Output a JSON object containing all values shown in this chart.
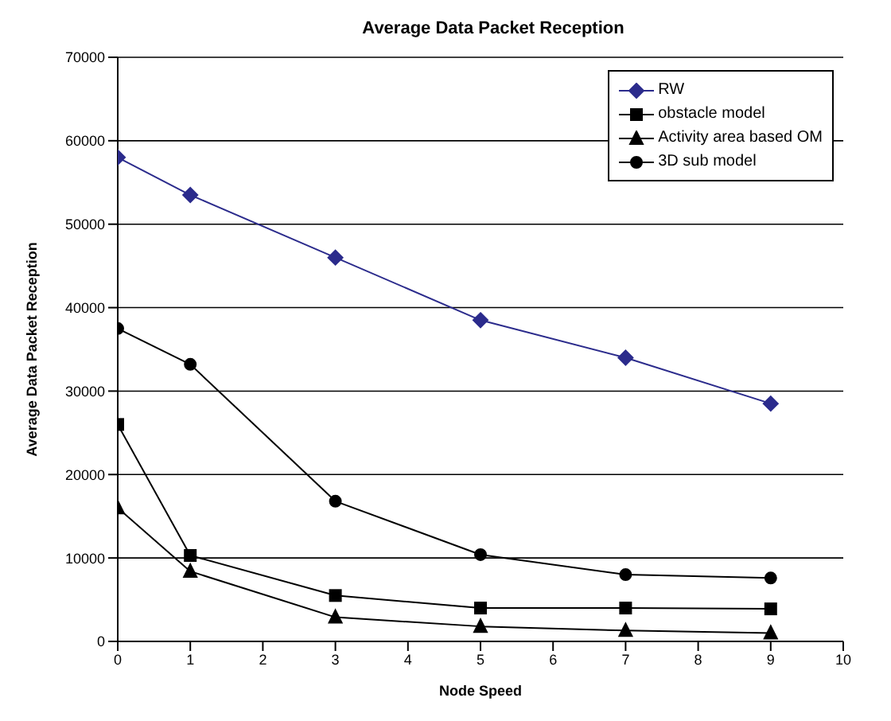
{
  "chart_data": {
    "type": "line",
    "title": "Average Data Packet Reception",
    "xlabel": "Node Speed",
    "ylabel": "Average Data Packet Reception",
    "x": [
      0,
      1,
      3,
      5,
      7,
      9
    ],
    "series": [
      {
        "name": "RW",
        "color": "#2b2b8c",
        "marker": "diamond",
        "values": [
          58000,
          53500,
          46000,
          38500,
          34000,
          28500
        ]
      },
      {
        "name": "obstacle model",
        "color": "#000000",
        "marker": "square",
        "values": [
          26000,
          10300,
          5500,
          4000,
          4000,
          3900
        ]
      },
      {
        "name": "Activity area based OM",
        "color": "#000000",
        "marker": "triangle",
        "values": [
          16000,
          8400,
          2900,
          1800,
          1300,
          1000
        ]
      },
      {
        "name": "3D sub model",
        "color": "#000000",
        "marker": "circle",
        "values": [
          37500,
          33200,
          16800,
          10400,
          8000,
          7600
        ]
      }
    ],
    "xlim": [
      0,
      10
    ],
    "xticks": [
      0,
      1,
      2,
      3,
      4,
      5,
      6,
      7,
      8,
      9,
      10
    ],
    "ylim": [
      0,
      70000
    ],
    "yticks": [
      0,
      10000,
      20000,
      30000,
      40000,
      50000,
      60000,
      70000
    ],
    "grid": "y",
    "legend": "top right",
    "line_style": "solid"
  }
}
